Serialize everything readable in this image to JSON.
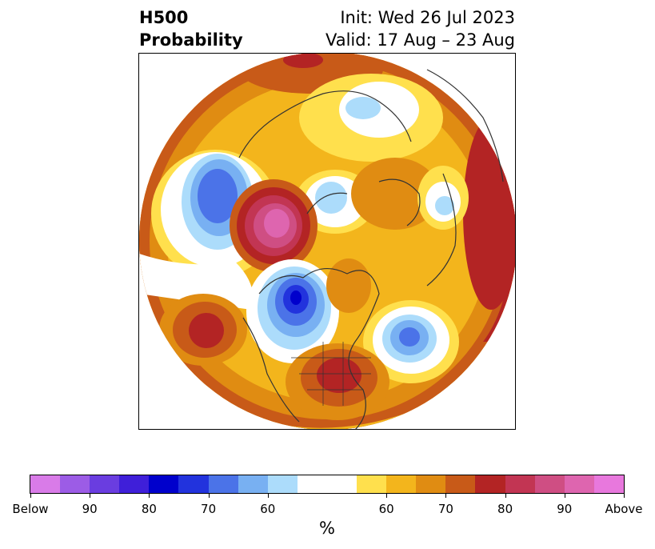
{
  "title": {
    "left_line1": "H500",
    "left_line2": "Probability",
    "right_line1": "Init: Wed 26 Jul 2023",
    "right_line2": "Valid: 17 Aug – 23 Aug"
  },
  "colorbar": {
    "colors": [
      "#d97be8",
      "#9c5ce6",
      "#6a3de0",
      "#3f1fd9",
      "#0000cc",
      "#2233dd",
      "#4b73e8",
      "#78b0f2",
      "#acdcfb",
      "#ffffff",
      "#ffe04d",
      "#f3b51c",
      "#e08c12",
      "#c85a18",
      "#b32424",
      "#c23553",
      "#cf4e83",
      "#de65af",
      "#e878dd"
    ],
    "tick_labels": [
      "Below",
      "90",
      "80",
      "70",
      "60",
      "60",
      "70",
      "80",
      "90",
      "Above"
    ],
    "label": "%"
  },
  "map": {
    "projection": "north-polar-stereographic",
    "colors": {
      "yellow": "#ffe04d",
      "gold": "#f3b51c",
      "orange": "#e08c12",
      "dark_orange": "#c85a18",
      "red": "#b32424",
      "crimson": "#c23553",
      "pink": "#cf4e83",
      "magenta": "#de65af",
      "light_blue": "#acdcfb",
      "sky_blue": "#78b0f2",
      "blue": "#4b73e8",
      "royal_blue": "#2233dd",
      "deep_blue": "#0000cc",
      "coast": "#333333"
    }
  }
}
